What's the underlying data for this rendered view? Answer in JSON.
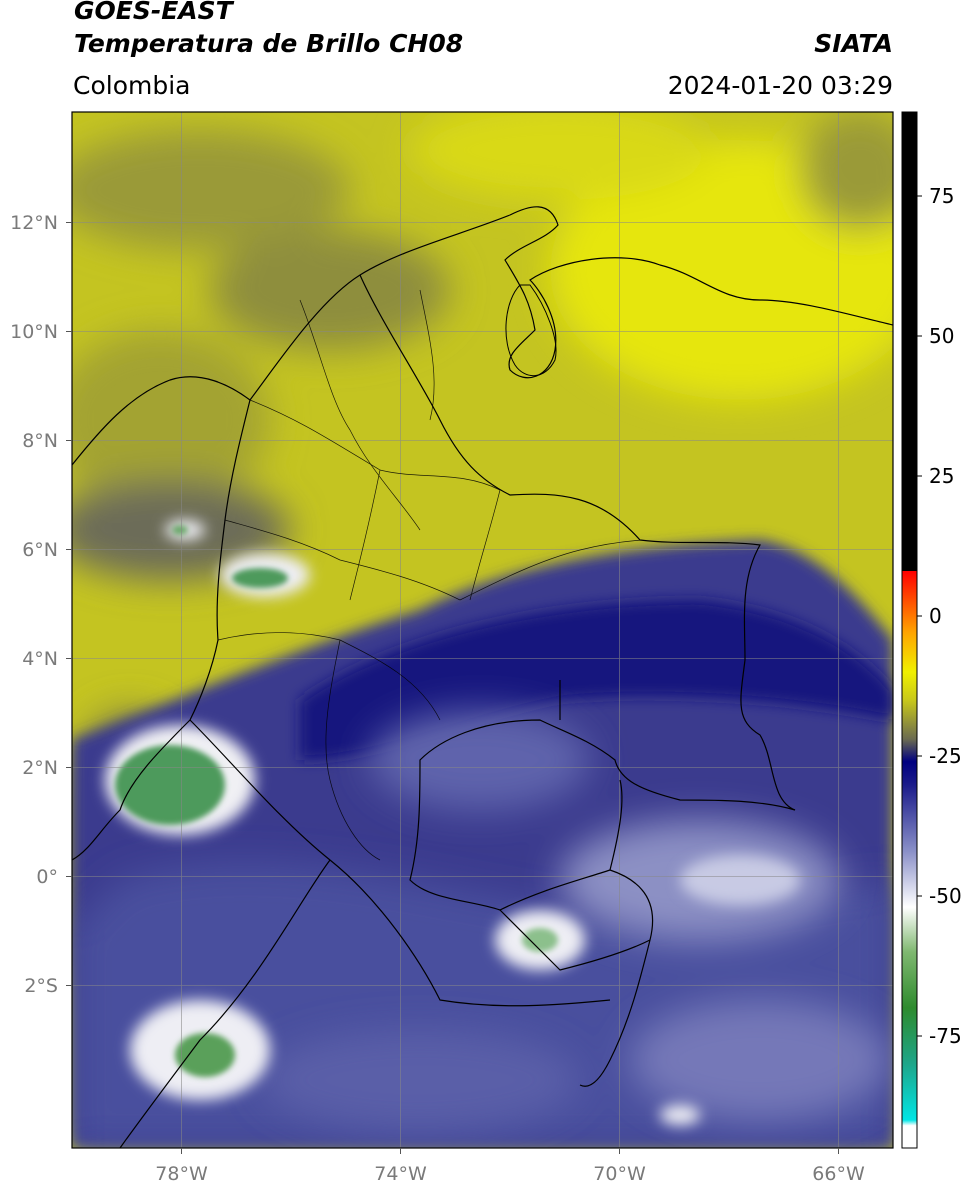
{
  "header": {
    "satellite": "GOES-EAST",
    "product": "Temperatura de Brillo CH08",
    "brand": "SIATA",
    "region": "Colombia",
    "datetime": "2024-01-20 03:29"
  },
  "map": {
    "lon_range": [
      -80,
      -65
    ],
    "lat_range": [
      -5,
      14
    ],
    "lon_ticks": [
      {
        "value": -78,
        "label": "78°W"
      },
      {
        "value": -74,
        "label": "74°W"
      },
      {
        "value": -70,
        "label": "70°W"
      },
      {
        "value": -66,
        "label": "66°W"
      }
    ],
    "lat_ticks": [
      {
        "value": 12,
        "label": "12°N"
      },
      {
        "value": 10,
        "label": "10°N"
      },
      {
        "value": 8,
        "label": "8°N"
      },
      {
        "value": 6,
        "label": "6°N"
      },
      {
        "value": 4,
        "label": "4°N"
      },
      {
        "value": 2,
        "label": "2°N"
      },
      {
        "value": 0,
        "label": "0°"
      },
      {
        "value": -2,
        "label": "2°S"
      }
    ],
    "grid": true
  },
  "colorbar": {
    "range": [
      -95,
      90
    ],
    "ticks": [
      {
        "value": 75,
        "label": "75"
      },
      {
        "value": 50,
        "label": "50"
      },
      {
        "value": 25,
        "label": "25"
      },
      {
        "value": 0,
        "label": "0"
      },
      {
        "value": -25,
        "label": "-25"
      },
      {
        "value": -50,
        "label": "-50"
      },
      {
        "value": -75,
        "label": "-75"
      }
    ],
    "stops": [
      {
        "value": -95,
        "color": "#ffffff"
      },
      {
        "value": -91,
        "color": "#ffffff"
      },
      {
        "value": -90,
        "color": "#00e5e5"
      },
      {
        "value": -80,
        "color": "#1ea68a"
      },
      {
        "value": -70,
        "color": "#2e8b2e"
      },
      {
        "value": -60,
        "color": "#7fb870"
      },
      {
        "value": -52,
        "color": "#ffffff"
      },
      {
        "value": -42,
        "color": "#8a90c8"
      },
      {
        "value": -30,
        "color": "#1a1a8a"
      },
      {
        "value": -26,
        "color": "#000080"
      },
      {
        "value": -22,
        "color": "#6b6b50"
      },
      {
        "value": -15,
        "color": "#c8c81a"
      },
      {
        "value": -10,
        "color": "#f0f000"
      },
      {
        "value": -3,
        "color": "#ffa500"
      },
      {
        "value": 8,
        "color": "#ff0000"
      },
      {
        "value": 8.01,
        "color": "#000000"
      },
      {
        "value": 90,
        "color": "#000000"
      }
    ]
  },
  "colors": {
    "warm_yellow": "#e5e510",
    "olive": "#b8b82a",
    "dark_olive": "#808040",
    "cold_navy": "#1c1c88",
    "cold_blue": "#5a5ea8",
    "cloud_white": "#e8e8f0",
    "cloud_green": "#5a9e5a"
  }
}
